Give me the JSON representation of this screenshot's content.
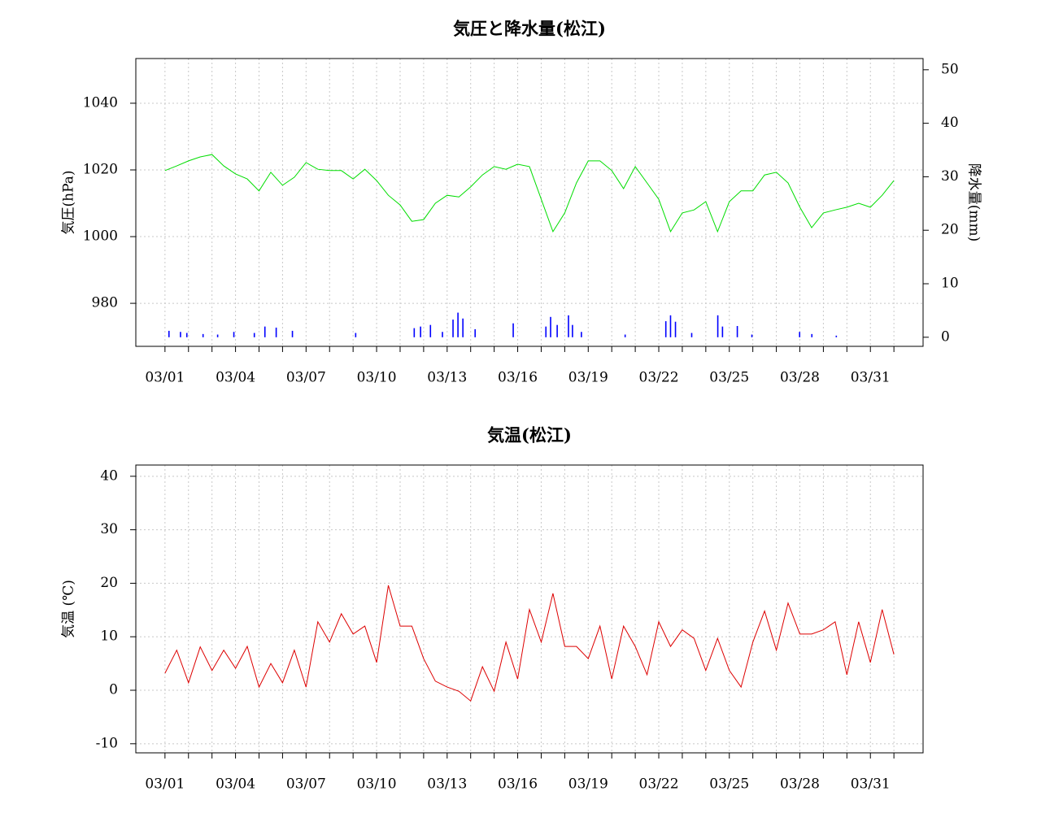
{
  "chart_data": [
    {
      "type": "line",
      "title": "気圧と降水量(松江)",
      "ylabel": "気圧(hPa)",
      "y2label": "降水量(mm)",
      "xlim": [
        -1.24,
        32.24
      ],
      "xticks": [
        {
          "value": 0,
          "label": "03/01"
        },
        {
          "value": 3,
          "label": "03/04"
        },
        {
          "value": 6,
          "label": "03/07"
        },
        {
          "value": 9,
          "label": "03/10"
        },
        {
          "value": 12,
          "label": "03/13"
        },
        {
          "value": 15,
          "label": "03/16"
        },
        {
          "value": 18,
          "label": "03/19"
        },
        {
          "value": 21,
          "label": "03/22"
        },
        {
          "value": 24,
          "label": "03/25"
        },
        {
          "value": 27,
          "label": "03/28"
        },
        {
          "value": 30,
          "label": "03/31"
        }
      ],
      "xminorticks": [
        1,
        2,
        4,
        5,
        7,
        8,
        10,
        11,
        13,
        14,
        16,
        17,
        19,
        20,
        22,
        23,
        25,
        26,
        28,
        29,
        31
      ],
      "ylim": [
        967.1,
        1053.4
      ],
      "yticks": [
        980,
        1000,
        1020,
        1040
      ],
      "y2lim": [
        -1.7,
        52.1
      ],
      "y2ticks": [
        0,
        10,
        20,
        30,
        40,
        50
      ],
      "grid": true,
      "x": [
        0,
        0.5,
        1,
        1.5,
        2,
        2.5,
        3,
        3.5,
        4,
        4.5,
        5,
        5.5,
        6,
        6.5,
        7,
        7.5,
        8,
        8.5,
        9,
        9.5,
        10,
        10.5,
        11,
        11.5,
        12,
        12.5,
        13,
        13.5,
        14,
        14.5,
        15,
        15.5,
        16,
        16.5,
        17,
        17.5,
        18,
        18.5,
        19,
        19.5,
        20,
        20.5,
        21,
        21.5,
        22,
        22.5,
        23,
        23.5,
        24,
        24.5,
        25,
        25.5,
        26,
        26.5,
        27,
        27.5,
        28,
        28.5,
        29,
        29.5,
        30,
        30.5,
        31
      ],
      "series": [
        {
          "color": "#00dd00",
          "values": [
            1019.8,
            1021.2,
            1022.7,
            1023.9,
            1024.6,
            1021.2,
            1018.8,
            1017.3,
            1013.7,
            1019.3,
            1015.4,
            1017.8,
            1022.2,
            1020.2,
            1019.8,
            1019.8,
            1017.3,
            1020.2,
            1016.8,
            1012.4,
            1009.5,
            1004.6,
            1005.1,
            1010,
            1012.4,
            1011.9,
            1014.9,
            1018.5,
            1021,
            1020.2,
            1021.7,
            1021,
            1011.2,
            1001.5,
            1007.1,
            1016.1,
            1022.7,
            1022.7,
            1019.8,
            1014.4,
            1021,
            1016.1,
            1011.2,
            1001.5,
            1007.1,
            1008,
            1010.5,
            1001.5,
            1010.5,
            1013.7,
            1013.7,
            1018.5,
            1019.3,
            1016.1,
            1008.8,
            1002.7,
            1007.1,
            1008,
            1008.8,
            1010,
            1008.8,
            1012.4,
            1016.8
          ]
        },
        {
          "type": "bar",
          "axis": "y2",
          "color": "#0000ff",
          "x": [
            0.17,
            0.66,
            0.93,
            1.62,
            2.24,
            2.93,
            3.8,
            4.25,
            4.73,
            5.42,
            8.11,
            10.6,
            10.87,
            11.29,
            11.8,
            12.25,
            12.46,
            12.67,
            13.19,
            14.81,
            16.2,
            16.4,
            16.68,
            17.16,
            17.33,
            17.71,
            19.57,
            21.3,
            21.5,
            21.71,
            22.4,
            23.51,
            23.71,
            24.34,
            24.96,
            26.99,
            27.51,
            28.55
          ],
          "values": [
            1.2,
            1,
            0.8,
            0.6,
            0.5,
            1,
            0.8,
            2,
            1.8,
            1.2,
            0.8,
            1.7,
            2,
            2.3,
            1,
            3.3,
            4.6,
            3.5,
            1.5,
            2.6,
            2,
            3.8,
            2.3,
            4.1,
            2.3,
            1,
            0.5,
            3,
            4.1,
            2.9,
            0.8,
            4.1,
            2,
            2.1,
            0.5,
            1,
            0.6,
            0.3
          ]
        }
      ]
    },
    {
      "type": "line",
      "title": "気温(松江)",
      "ylabel": "気温 (℃)",
      "xlim": [
        -1.24,
        32.24
      ],
      "xticks": [
        {
          "value": 0,
          "label": "03/01"
        },
        {
          "value": 3,
          "label": "03/04"
        },
        {
          "value": 6,
          "label": "03/07"
        },
        {
          "value": 9,
          "label": "03/10"
        },
        {
          "value": 12,
          "label": "03/13"
        },
        {
          "value": 15,
          "label": "03/16"
        },
        {
          "value": 18,
          "label": "03/19"
        },
        {
          "value": 21,
          "label": "03/22"
        },
        {
          "value": 24,
          "label": "03/25"
        },
        {
          "value": 27,
          "label": "03/28"
        },
        {
          "value": 30,
          "label": "03/31"
        }
      ],
      "xminorticks": [
        1,
        2,
        4,
        5,
        7,
        8,
        10,
        11,
        13,
        14,
        16,
        17,
        19,
        20,
        22,
        23,
        25,
        26,
        28,
        29,
        31
      ],
      "ylim": [
        -11.7,
        42.1
      ],
      "yticks": [
        -10,
        0,
        10,
        20,
        30,
        40
      ],
      "grid": true,
      "x": [
        0,
        0.5,
        1,
        1.5,
        2,
        2.5,
        3,
        3.5,
        4,
        4.5,
        5,
        5.5,
        6,
        6.5,
        7,
        7.5,
        8,
        8.5,
        9,
        9.5,
        10,
        10.5,
        11,
        11.5,
        12,
        12.5,
        13,
        13.5,
        14,
        14.5,
        15,
        15.5,
        16,
        16.5,
        17,
        17.5,
        18,
        18.5,
        19,
        19.5,
        20,
        20.5,
        21,
        21.5,
        22,
        22.5,
        23,
        23.5,
        24,
        24.5,
        25,
        25.5,
        26,
        26.5,
        27,
        27.5,
        28,
        28.5,
        29,
        29.5,
        30,
        30.5,
        31
      ],
      "series": [
        {
          "color": "#dd0000",
          "values": [
            3.2,
            7.5,
            1.4,
            8.1,
            3.7,
            7.5,
            4.1,
            8.2,
            0.6,
            5,
            1.4,
            7.5,
            0.6,
            12.8,
            9,
            14.3,
            10.5,
            12,
            5.2,
            19.6,
            12,
            12,
            5.9,
            1.7,
            0.6,
            -0.2,
            -2,
            4.4,
            -0.2,
            9,
            2.1,
            15.1,
            9,
            18.1,
            8.2,
            8.2,
            5.9,
            12,
            2.1,
            12,
            8.2,
            2.9,
            12.8,
            8.2,
            11.3,
            9.7,
            3.7,
            9.7,
            3.7,
            0.6,
            9,
            14.8,
            7.5,
            16.3,
            10.5,
            10.5,
            11.3,
            12.8,
            2.9,
            12.8,
            5.2,
            15.1,
            6.7
          ]
        }
      ]
    }
  ]
}
